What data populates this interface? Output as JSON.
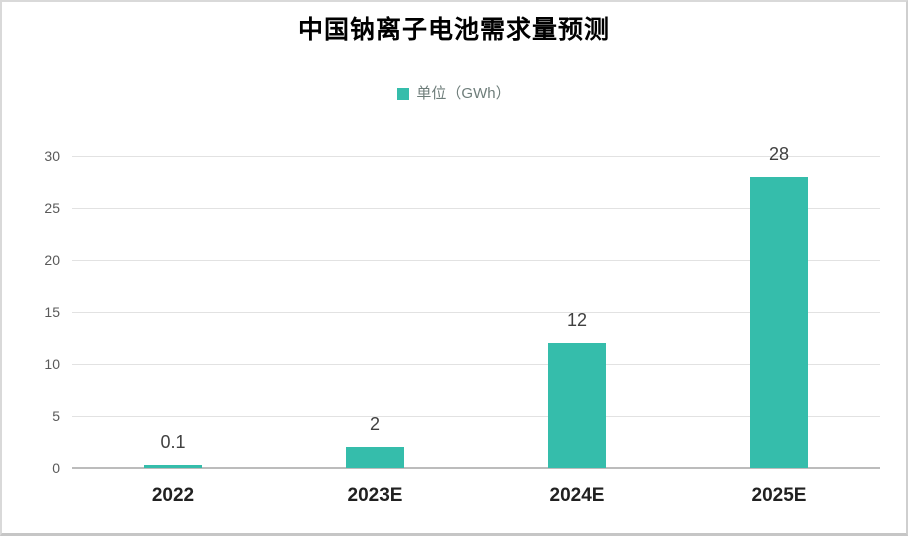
{
  "title": "中国钠离子电池需求量预测",
  "legend": {
    "label": "单位（GWh）"
  },
  "colors": {
    "bar": "#35bdab",
    "legend_text": "#6e7d7a",
    "ytick_text": "#595959",
    "xtick_text": "#212121",
    "data_label_text": "#404040",
    "gridline": "#e2e2e2",
    "axis_line": "#bcbcbc"
  },
  "chart_data": {
    "type": "bar",
    "title": "中国钠离子电池需求量预测",
    "categories": [
      "2022",
      "2023E",
      "2024E",
      "2025E"
    ],
    "values": [
      0.1,
      2,
      12,
      28
    ],
    "data_labels": [
      "0.1",
      "2",
      "12",
      "28"
    ],
    "legend": [
      "单位（GWh）"
    ],
    "legend_position": "top",
    "xlabel": "",
    "ylabel": "",
    "ylim": [
      0,
      30
    ],
    "yticks": [
      0,
      5,
      10,
      15,
      20,
      25,
      30
    ],
    "grid": true,
    "bar_color": "#35bdab"
  }
}
